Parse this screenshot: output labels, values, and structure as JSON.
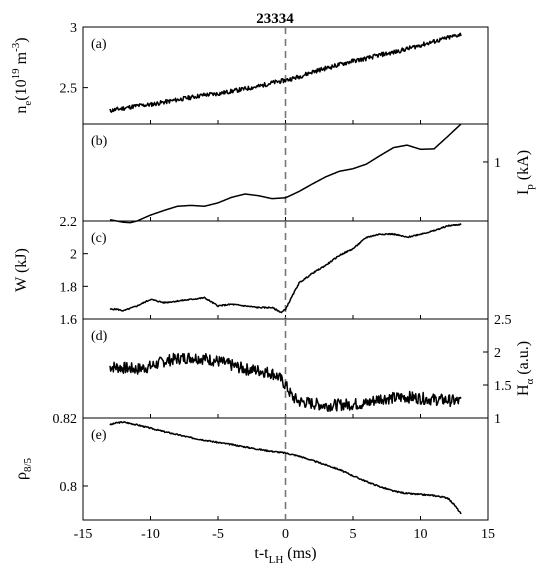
{
  "chart_data": {
    "type": "line",
    "title": "23334",
    "x_axis": {
      "label": "t-t",
      "label_sub": "LH",
      "unit": "(ms)",
      "range": [
        -15,
        15
      ],
      "ticks": [
        -15,
        -10,
        -5,
        0,
        5,
        10,
        15
      ],
      "tick_labels": [
        "-15",
        "-10",
        "-5",
        "0",
        "5",
        "10",
        "15"
      ]
    },
    "event_marker": {
      "x": 0,
      "style": "dashed vertical line, gray"
    },
    "panels": [
      {
        "id": "a",
        "tag": "(a)",
        "axis_side": "left",
        "ylabel": "n",
        "ylabel_sub": "e",
        "ylabel_unit": "(10",
        "ylabel_sup": "19",
        "ylabel_unit2": " m",
        "ylabel_sup2": "-3",
        "ylabel_unit3": ")",
        "ylim": [
          2.2,
          3.0
        ],
        "yticks": [
          2.5,
          3
        ],
        "ytick_labels": [
          "2.5",
          "3"
        ],
        "noise": 0.018,
        "seed": 11,
        "x": [
          -13,
          -12,
          -11,
          -10,
          -9,
          -8,
          -7,
          -6,
          -5,
          -4,
          -3,
          -2,
          -1,
          0,
          1,
          2,
          3,
          4,
          5,
          6,
          7,
          8,
          9,
          10,
          11,
          12,
          13
        ],
        "y": [
          2.31,
          2.33,
          2.35,
          2.36,
          2.38,
          2.4,
          2.42,
          2.44,
          2.45,
          2.47,
          2.49,
          2.51,
          2.54,
          2.56,
          2.59,
          2.63,
          2.66,
          2.69,
          2.72,
          2.74,
          2.77,
          2.79,
          2.82,
          2.85,
          2.88,
          2.91,
          2.94
        ]
      },
      {
        "id": "b",
        "tag": "(b)",
        "axis_side": "right",
        "ylabel": "I",
        "ylabel_sub": "p",
        "ylabel_unit": " (kA)",
        "ylim": [
          0.86,
          1.09
        ],
        "yticks": [
          1
        ],
        "ytick_labels": [
          "1"
        ],
        "noise": 0,
        "seed": 2,
        "x": [
          -13,
          -12,
          -11.5,
          -11,
          -10,
          -9,
          -8,
          -7,
          -6,
          -5,
          -4,
          -3,
          -2,
          -1,
          0,
          1,
          2,
          3,
          4,
          5,
          6,
          7,
          8,
          9,
          10,
          11,
          12,
          13
        ],
        "y": [
          0.863,
          0.857,
          0.856,
          0.86,
          0.874,
          0.885,
          0.895,
          0.897,
          0.895,
          0.903,
          0.916,
          0.924,
          0.92,
          0.913,
          0.915,
          0.93,
          0.948,
          0.965,
          0.978,
          0.984,
          0.995,
          1.015,
          1.034,
          1.04,
          1.03,
          1.031,
          1.06,
          1.09
        ]
      },
      {
        "id": "c",
        "tag": "(c)",
        "axis_side": "left",
        "ylabel": "W",
        "ylabel_sub": "",
        "ylabel_unit": " (kJ)",
        "ylim": [
          1.6,
          2.2
        ],
        "yticks": [
          1.6,
          1.8,
          2,
          2.2
        ],
        "ytick_labels": [
          "1.6",
          "1.8",
          "2",
          "2.2"
        ],
        "noise": 0.004,
        "seed": 5,
        "x": [
          -13,
          -12.5,
          -12,
          -11,
          -10,
          -9,
          -8,
          -7,
          -6,
          -5,
          -4,
          -3,
          -2,
          -1,
          -0.3,
          0,
          0.5,
          1,
          2,
          3,
          4,
          5,
          6,
          7,
          8,
          9,
          10,
          11,
          12,
          13
        ],
        "y": [
          1.66,
          1.66,
          1.65,
          1.68,
          1.72,
          1.7,
          1.71,
          1.72,
          1.73,
          1.68,
          1.69,
          1.68,
          1.67,
          1.67,
          1.64,
          1.66,
          1.74,
          1.82,
          1.88,
          1.93,
          1.99,
          2.03,
          2.1,
          2.12,
          2.12,
          2.1,
          2.12,
          2.14,
          2.17,
          2.18
        ]
      },
      {
        "id": "d",
        "tag": "(d)",
        "axis_side": "right",
        "ylabel": "H",
        "ylabel_sub": "α",
        "ylabel_unit": " (a.u.)",
        "ylim": [
          1.0,
          2.5
        ],
        "yticks": [
          1,
          1.5,
          2,
          2.5
        ],
        "ytick_labels": [
          "1",
          "1.5",
          "2",
          "2.5"
        ],
        "noise": 0.09,
        "seed": 7,
        "x": [
          -13,
          -12,
          -11,
          -10,
          -9,
          -8,
          -7,
          -6,
          -5,
          -4,
          -3,
          -2,
          -1,
          -0.5,
          0,
          0.5,
          1,
          2,
          3,
          4,
          5,
          6,
          7,
          8,
          9,
          10,
          11,
          12,
          13
        ],
        "y": [
          1.78,
          1.76,
          1.74,
          1.78,
          1.86,
          1.9,
          1.92,
          1.9,
          1.86,
          1.8,
          1.74,
          1.72,
          1.68,
          1.62,
          1.5,
          1.32,
          1.25,
          1.22,
          1.19,
          1.2,
          1.21,
          1.22,
          1.3,
          1.3,
          1.32,
          1.3,
          1.28,
          1.27,
          1.25
        ]
      },
      {
        "id": "e",
        "tag": "(e)",
        "axis_side": "left",
        "ylabel": "ρ",
        "ylabel_sub": "8/5",
        "ylabel_unit": "",
        "ylim": [
          0.79,
          0.82
        ],
        "yticks": [
          0.8,
          0.82
        ],
        "ytick_labels": [
          "0.8",
          "0.82"
        ],
        "noise": 0.0002,
        "seed": 3,
        "x": [
          -13,
          -12.5,
          -12,
          -11,
          -10,
          -9,
          -8,
          -7,
          -6,
          -5,
          -4,
          -3,
          -2,
          -1,
          0,
          1,
          2,
          3,
          4,
          5,
          6,
          7,
          8,
          9,
          10,
          11,
          12,
          12.5,
          13
        ],
        "y": [
          0.818,
          0.8186,
          0.8188,
          0.818,
          0.817,
          0.816,
          0.8151,
          0.8142,
          0.8135,
          0.8128,
          0.8122,
          0.8115,
          0.8108,
          0.8102,
          0.8097,
          0.8088,
          0.8075,
          0.8062,
          0.8048,
          0.803,
          0.8013,
          0.7998,
          0.7985,
          0.7978,
          0.7975,
          0.7972,
          0.7965,
          0.7945,
          0.7918
        ]
      }
    ]
  }
}
